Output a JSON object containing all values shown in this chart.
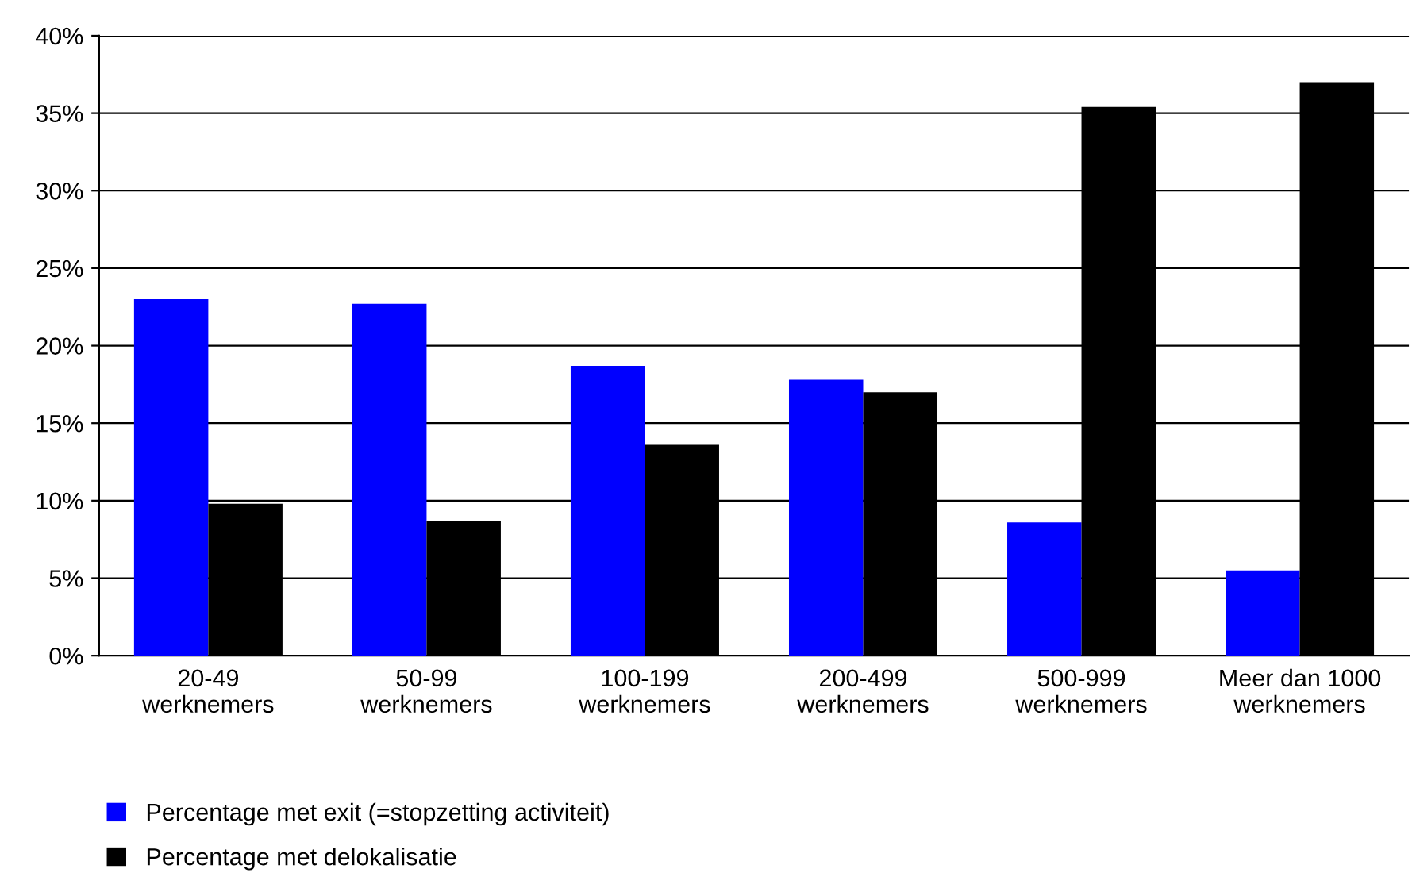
{
  "chart_data": {
    "type": "bar",
    "categories": [
      "20-49\nwerknemers",
      "50-99\nwerknemers",
      "100-199\nwerknemers",
      "200-499\nwerknemers",
      "500-999\nwerknemers",
      "Meer dan 1000\nwerknemers"
    ],
    "series": [
      {
        "name": "Percentage met exit (=stopzetting activiteit)",
        "color": "#0000ff",
        "values": [
          23.0,
          22.7,
          18.7,
          17.8,
          8.6,
          5.5
        ]
      },
      {
        "name": "Percentage met delokalisatie",
        "color": "#000000",
        "values": [
          9.8,
          8.7,
          13.6,
          17.0,
          35.4,
          37.0
        ]
      }
    ],
    "ylim": [
      0,
      40
    ],
    "yticks": [
      {
        "value": 0,
        "label": "0%"
      },
      {
        "value": 5,
        "label": "5%"
      },
      {
        "value": 10,
        "label": "10%"
      },
      {
        "value": 15,
        "label": "15%"
      },
      {
        "value": 20,
        "label": "20%"
      },
      {
        "value": 25,
        "label": "25%"
      },
      {
        "value": 30,
        "label": "30%"
      },
      {
        "value": 35,
        "label": "35%"
      },
      {
        "value": 40,
        "label": "40%"
      }
    ],
    "grid": "y",
    "legend": "bottom left"
  }
}
